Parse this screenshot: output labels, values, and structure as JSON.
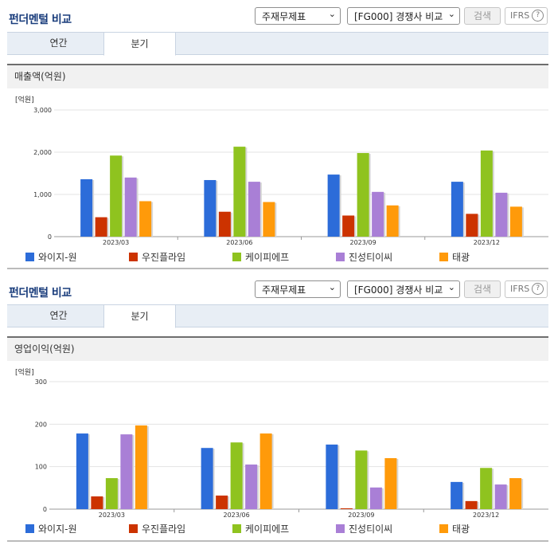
{
  "sections": [
    {
      "title": "펀더멘털 비교",
      "select1": "주재무제표",
      "select2": "[FG000] 경쟁사 비교",
      "search_btn": "검색",
      "ifrs_label": "IFRS",
      "ifrs_help": "?",
      "tabs": [
        "연간",
        "분기"
      ],
      "active_tab": 1,
      "panel_title": "매출액(억원)",
      "unit": "[억원]"
    },
    {
      "title": "펀더멘털 비교",
      "select1": "주재무제표",
      "select2": "[FG000] 경쟁사 비교",
      "search_btn": "검색",
      "ifrs_label": "IFRS",
      "ifrs_help": "?",
      "tabs": [
        "연간",
        "분기"
      ],
      "active_tab": 1,
      "panel_title": "영업이익(억원)",
      "unit": "[억원]"
    }
  ],
  "colors": [
    "#2c6cd9",
    "#cc3300",
    "#8fc31f",
    "#a97fd6",
    "#ff9a0a"
  ],
  "chart_data": [
    {
      "type": "bar",
      "title": "매출액(억원)",
      "ylabel": "[억원]",
      "categories": [
        "2023/03",
        "2023/06",
        "2023/09",
        "2023/12"
      ],
      "ylim": [
        0,
        3000
      ],
      "yticks": [
        0,
        1000,
        2000,
        3000
      ],
      "ytick_labels": [
        "0",
        "1,000",
        "2,000",
        "3,000"
      ],
      "grid": true,
      "legend": "bottom",
      "series": [
        {
          "name": "와이지-원",
          "values": [
            1360,
            1340,
            1470,
            1300
          ]
        },
        {
          "name": "우진플라임",
          "values": [
            460,
            590,
            500,
            540
          ]
        },
        {
          "name": "케이피에프",
          "values": [
            1920,
            2130,
            1980,
            2040
          ]
        },
        {
          "name": "진성티이씨",
          "values": [
            1400,
            1300,
            1060,
            1040
          ]
        },
        {
          "name": "태광",
          "values": [
            840,
            820,
            740,
            710
          ]
        }
      ]
    },
    {
      "type": "bar",
      "title": "영업이익(억원)",
      "ylabel": "[억원]",
      "categories": [
        "2023/03",
        "2023/06",
        "2023/09",
        "2023/12"
      ],
      "ylim": [
        0,
        300
      ],
      "yticks": [
        0,
        100,
        200,
        300
      ],
      "ytick_labels": [
        "0",
        "100",
        "200",
        "300"
      ],
      "grid": true,
      "legend": "bottom",
      "series": [
        {
          "name": "와이지-원",
          "values": [
            178,
            144,
            152,
            64
          ]
        },
        {
          "name": "우진플라임",
          "values": [
            30,
            32,
            2,
            19
          ]
        },
        {
          "name": "케이피에프",
          "values": [
            73,
            157,
            138,
            97
          ]
        },
        {
          "name": "진성티이씨",
          "values": [
            176,
            105,
            51,
            58
          ]
        },
        {
          "name": "태광",
          "values": [
            197,
            178,
            120,
            73
          ]
        }
      ]
    }
  ]
}
